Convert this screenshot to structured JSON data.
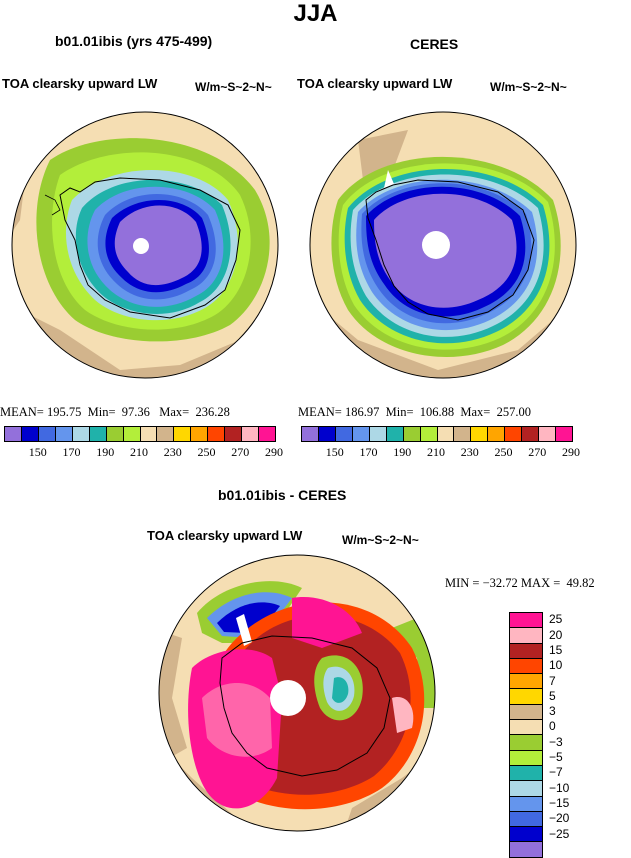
{
  "title": "JJA",
  "colors": {
    "abs_palette": [
      "#9370db",
      "#0000cd",
      "#4169e1",
      "#6495ed",
      "#add8e6",
      "#20b2aa",
      "#9acd32",
      "#b3ee3a",
      "#f5deb3",
      "#d2b48c",
      "#ffd700",
      "#ffa500",
      "#ff4500",
      "#b22222",
      "#ffb6c1",
      "#ff1493"
    ],
    "diff_palette": [
      "#ff1493",
      "#ffb6c1",
      "#b22222",
      "#ff4500",
      "#ffa500",
      "#ffd700",
      "#d2b48c",
      "#f5deb3",
      "#9acd32",
      "#b3ee3a",
      "#20b2aa",
      "#add8e6",
      "#6495ed",
      "#4169e1",
      "#0000cd",
      "#9370db"
    ]
  },
  "panels": [
    {
      "id": "model",
      "case_title": "b01.01ibis (yrs 475-499)",
      "variable": "TOA clearsky upward LW",
      "units": "W/m~S~2~N~",
      "stats": {
        "mean_label": "MEAN=",
        "mean": "195.75",
        "min_label": "Min=",
        "min": "97.36",
        "max_label": "Max=",
        "max": "236.28"
      }
    },
    {
      "id": "obs",
      "case_title": "CERES",
      "variable": "TOA clearsky upward LW",
      "units": "W/m~S~2~N~",
      "stats": {
        "mean_label": "MEAN=",
        "mean": "186.97",
        "min_label": "Min=",
        "min": "106.88",
        "max_label": "Max=",
        "max": "257.00"
      }
    }
  ],
  "abs_ticks": [
    "150",
    "170",
    "190",
    "210",
    "230",
    "250",
    "270",
    "290"
  ],
  "diff": {
    "case_title": "b01.01ibis - CERES",
    "variable": "TOA clearsky upward LW",
    "units": "W/m~S~2~N~",
    "min_label": "MIN =",
    "min": "−32.72",
    "max_label": "MAX =",
    "max": "49.82",
    "levels": [
      "25",
      "20",
      "15",
      "10",
      "7",
      "5",
      "3",
      "0",
      "−3",
      "−5",
      "−7",
      "−10",
      "−15",
      "−20",
      "−25"
    ]
  }
}
